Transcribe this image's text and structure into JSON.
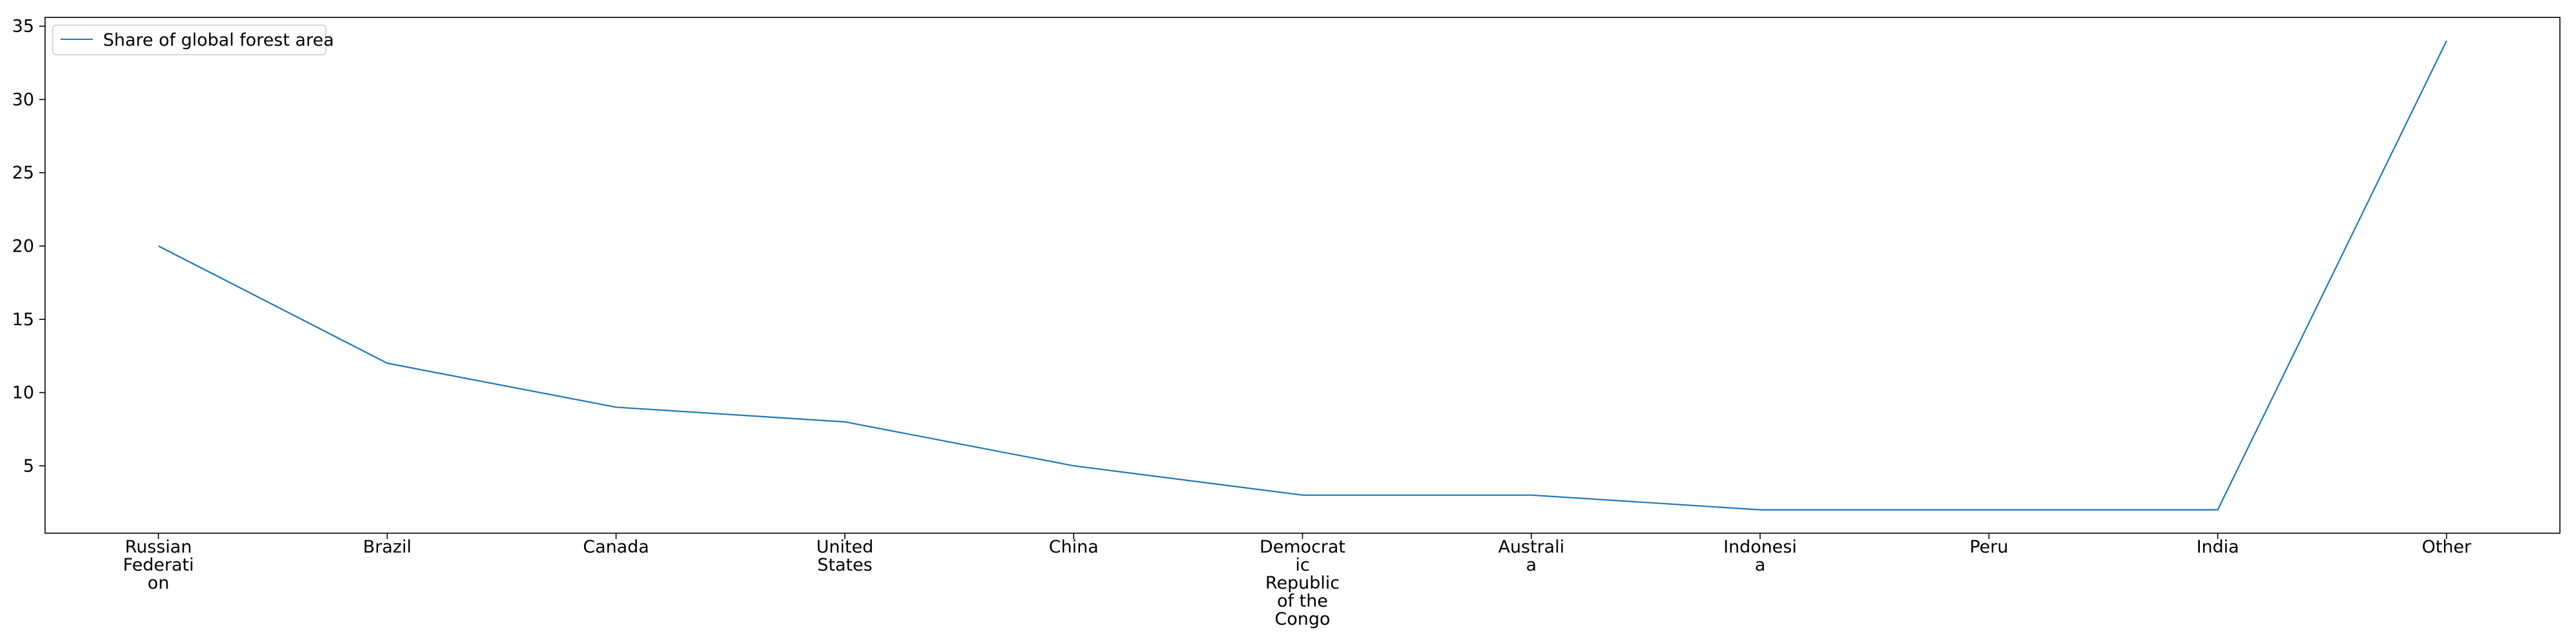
{
  "chart_data": {
    "type": "line",
    "categories": [
      [
        "Russian",
        "Federati",
        "on"
      ],
      [
        "Brazil"
      ],
      [
        "Canada"
      ],
      [
        "United",
        "States"
      ],
      [
        "China"
      ],
      [
        "Democrat",
        "ic",
        "Republic",
        "of the",
        "Congo"
      ],
      [
        "Australi",
        "a"
      ],
      [
        "Indonesi",
        "a"
      ],
      [
        "Peru"
      ],
      [
        "India"
      ],
      [
        "Other"
      ]
    ],
    "series": [
      {
        "name": "Share of global forest area",
        "values": [
          20,
          12,
          9,
          8,
          5,
          3,
          3,
          2,
          2,
          2,
          34
        ],
        "color": "#1f77b4"
      }
    ],
    "yticks": [
      5,
      10,
      15,
      20,
      25,
      30,
      35
    ],
    "ylim": [
      0.4,
      35.6
    ],
    "xlabel": "",
    "ylabel": "",
    "grid": false,
    "legend_position": "top-left"
  }
}
